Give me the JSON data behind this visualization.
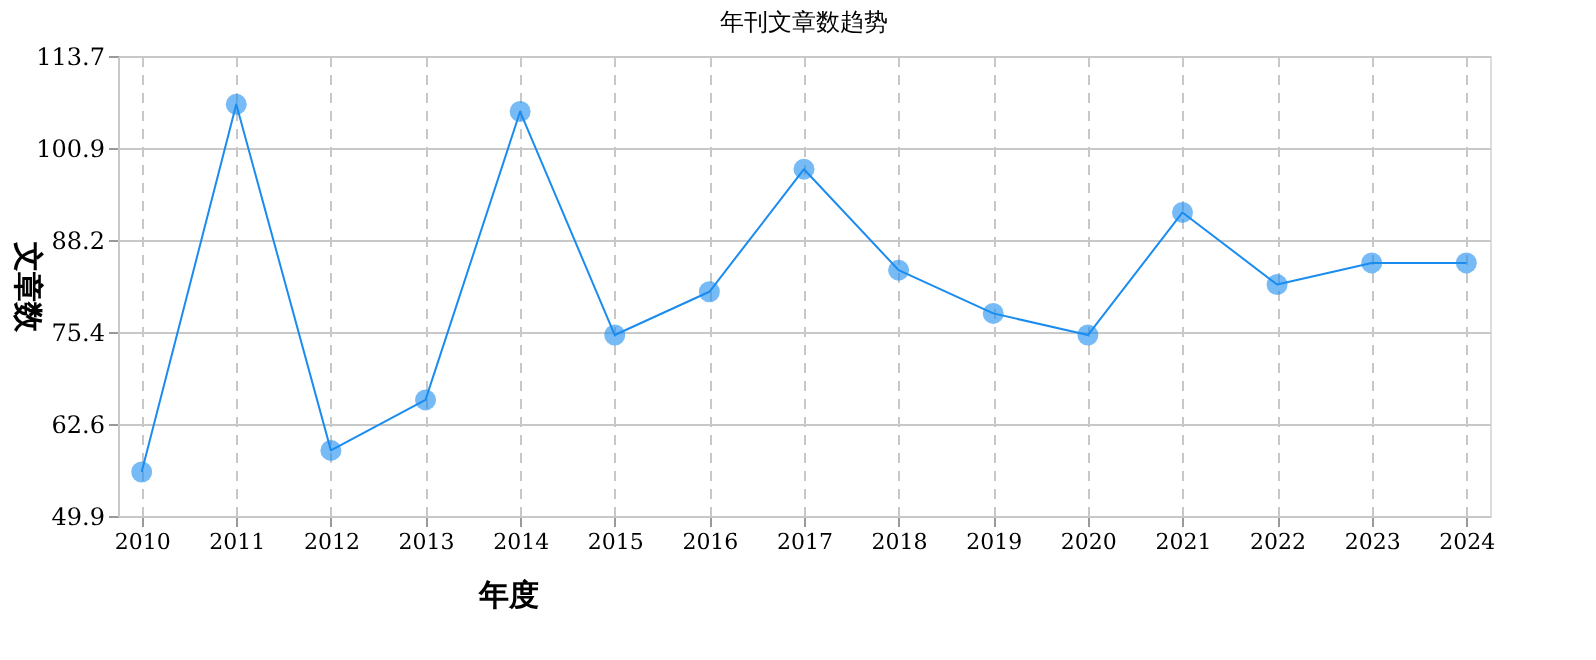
{
  "chart_data": {
    "type": "line",
    "title": "年刊文章数趋势",
    "xlabel": "年度",
    "ylabel": "文章数",
    "categories": [
      "2010",
      "2011",
      "2012",
      "2013",
      "2014",
      "2015",
      "2016",
      "2017",
      "2018",
      "2019",
      "2020",
      "2021",
      "2022",
      "2023",
      "2024"
    ],
    "series": [
      {
        "color": "#1a8cf0",
        "values": [
          56,
          107,
          59,
          66,
          106,
          75,
          81,
          98,
          84,
          78,
          75,
          92,
          82,
          85,
          85
        ]
      }
    ],
    "ylim": [
      49.9,
      113.7
    ],
    "yticks": [
      49.9,
      62.6,
      75.4,
      88.2,
      100.9,
      113.7
    ],
    "grid": true,
    "marker": "circle",
    "line_style": "solid"
  }
}
